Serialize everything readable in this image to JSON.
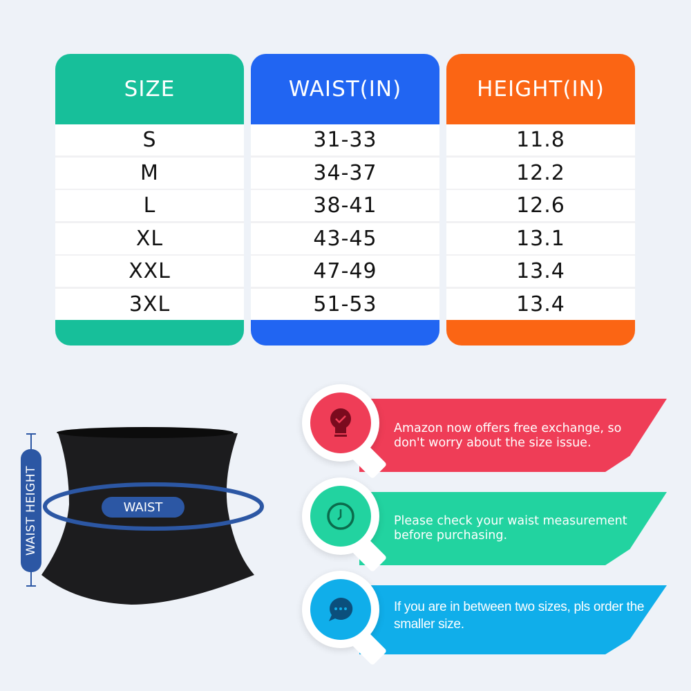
{
  "table": {
    "columns": [
      {
        "header": "SIZE",
        "color": "#17bf9a",
        "values": [
          "S",
          "M",
          "L",
          "XL",
          "XXL",
          "3XL"
        ]
      },
      {
        "header": "WAIST(IN)",
        "color": "#2165f2",
        "values": [
          "31-33",
          "34-37",
          "38-41",
          "43-45",
          "47-49",
          "51-53"
        ]
      },
      {
        "header": "HEIGHT(IN)",
        "color": "#fb6514",
        "values": [
          "11.8",
          "12.2",
          "12.6",
          "13.1",
          "13.4",
          "13.4"
        ]
      }
    ]
  },
  "diagram": {
    "waist_label": "WAIST",
    "height_label": "WAIST HEIGHT",
    "accent": "#2c57a4"
  },
  "tips": [
    {
      "text": "Amazon now offers free exchange, so don't worry about the size issue.",
      "color": "#ef3d57",
      "icon": "lightbulb-check-icon"
    },
    {
      "text": "Please check your waist measurement before purchasing.",
      "color": "#22d3a0",
      "icon": "clock-icon"
    },
    {
      "text": "If you are in between two sizes, pls order the smaller size.",
      "color": "#10aeea",
      "icon": "chat-bubble-icon"
    }
  ]
}
